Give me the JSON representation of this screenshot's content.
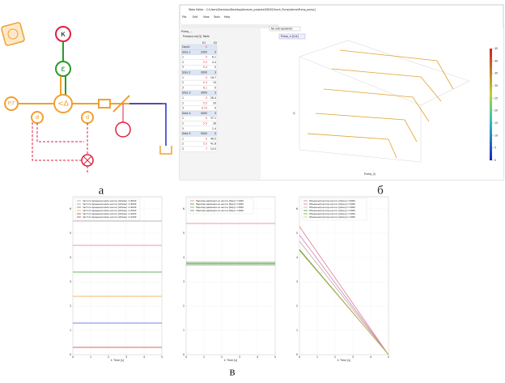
{
  "labels": {
    "a": "а",
    "b": "б",
    "c": "в"
  },
  "diagram": {
    "k": "к",
    "e": "ε",
    "v": "<Δ",
    "p": "P|T",
    "d1": "d",
    "d2": "d"
  },
  "editor": {
    "title": "Table Editor - C:\\Users\\Stanislav\\Desktop\\Amesim_projects\\SSDV\\Check_Pump\\demo\\Pump_pump]",
    "menu": [
      "File",
      "Edit",
      "View",
      "Tools",
      "Help"
    ],
    "tab": "Pump_...",
    "table_name": "Pumps(r.m)(Q) Table",
    "columns": [
      "X1",
      "X2"
    ],
    "rows": [
      [
        "Count",
        "5",
        ""
      ],
      [
        "Slice 1",
        "2000",
        "3"
      ],
      [
        "1",
        "0",
        "8.1"
      ],
      [
        "2",
        "3.3",
        "4.4"
      ],
      [
        "3",
        "5.4",
        "0"
      ],
      [
        "Slice 2",
        "3000",
        "3"
      ],
      [
        "1",
        "0",
        "18.7"
      ],
      [
        "2",
        "5.3",
        "10"
      ],
      [
        "3",
        "8.1",
        "0"
      ],
      [
        "Slice 3",
        "3000",
        "3"
      ],
      [
        "1",
        "0",
        "28.4"
      ],
      [
        "2",
        "5.5",
        "20"
      ],
      [
        "3",
        "9.73",
        "0"
      ],
      [
        "Slice 4",
        "4000",
        "3"
      ],
      [
        "1",
        "0",
        "37.1"
      ],
      [
        "2",
        "5.5",
        "28"
      ],
      [
        "3",
        "",
        "2.4"
      ],
      [
        "Slice 5",
        "5000",
        "3"
      ],
      [
        "1",
        "0",
        "46.5"
      ],
      [
        "2",
        "5.5",
        "41.8"
      ],
      [
        "3",
        "7",
        "14.5"
      ]
    ],
    "interp": "No extrapolation",
    "plot_tab": "Pump_rr [full]",
    "x_label": "Pump_(l)",
    "y_label": "Q",
    "colorbar_ticks": [
      0,
      5,
      10,
      15,
      20,
      25,
      30,
      35,
      40,
      45
    ]
  },
  "charts": [
    {
      "x_label": "t: Time [s]",
      "xlim": [
        0,
        5
      ],
      "xticks": [
        0,
        1,
        2,
        3,
        4,
        5
      ],
      "ylim": [
        0,
        6.5
      ],
      "yticks": [
        0,
        1,
        2,
        3,
        4,
        5,
        6
      ],
      "x": [
        0,
        5
      ],
      "series": [
        {
          "name": "Частота вращения вала насоса [об/мин] n=6000",
          "color": "#a0a0a0",
          "values": [
            5.5,
            5.5
          ]
        },
        {
          "name": "Частота вращения вала насоса [об/мин] n=5000",
          "color": "#e07890",
          "values": [
            4.5,
            4.5
          ]
        },
        {
          "name": "Частота вращения вала насоса [об/мин] n=4000",
          "color": "#3a9a3a",
          "values": [
            3.4,
            3.4
          ]
        },
        {
          "name": "Частота вращения вала насоса [об/мин] n=3000",
          "color": "#f0a030",
          "values": [
            2.4,
            2.4
          ]
        },
        {
          "name": "Частота вращения вала насоса [об/мин] n=2000",
          "color": "#4060d0",
          "values": [
            1.3,
            1.3
          ]
        },
        {
          "name": "Частота вращения вала насоса [об/мин] n=1000",
          "color": "#d03030",
          "values": [
            0.3,
            0.3
          ]
        }
      ]
    },
    {
      "x_label": "t: Time [s]",
      "xlim": [
        0,
        5
      ],
      "xticks": [
        0,
        1,
        2,
        3,
        4,
        5
      ],
      "ylim": [
        0,
        6.5
      ],
      "yticks": [
        0,
        1,
        2,
        3,
        4,
        5,
        6
      ],
      "x": [
        0,
        5
      ],
      "series": [
        {
          "name": "Перепад давления на насосе [бар] n=1000",
          "color": "#e07890",
          "values": [
            5.4,
            5.4
          ]
        },
        {
          "name": "Перепад давления на насосе [бар] n=2000",
          "color": "#3a9a3a",
          "values": [
            3.8,
            3.8
          ]
        },
        {
          "name": "Перепад давления на насосе [бар] n=3000",
          "color": "#6aaa3a",
          "values": [
            3.75,
            3.75
          ]
        },
        {
          "name": "Перепад давления на насосе [бар] n=4000",
          "color": "#5a8a2a",
          "values": [
            3.7,
            3.7
          ]
        }
      ]
    },
    {
      "x_label": "t: Time [s]",
      "xlim": [
        0,
        5
      ],
      "xticks": [
        0,
        1,
        2,
        3,
        4,
        5
      ],
      "ylim": [
        0,
        6.5
      ],
      "yticks": [
        0,
        1,
        2,
        3,
        4,
        5,
        6
      ],
      "x": [
        0,
        5
      ],
      "series": [
        {
          "name": "Объемный расход насоса [л/мин] n=6000",
          "color": "#e07890",
          "values": [
            5.27,
            0
          ]
        },
        {
          "name": "Объемный расход насоса [л/мин] n=5000",
          "color": "#c080c0",
          "values": [
            4.93,
            0
          ]
        },
        {
          "name": "Объемный расход насоса [л/мин] n=4000",
          "color": "#d0a0a0",
          "values": [
            4.67,
            0
          ]
        },
        {
          "name": "Объемный расход насоса [л/мин] n=3000",
          "color": "#3a9a3a",
          "values": [
            4.33,
            0
          ]
        },
        {
          "name": "Объемный расход насоса [л/мин] n=2000",
          "color": "#6aaa3a",
          "values": [
            4.3,
            0
          ]
        },
        {
          "name": "Объемный расход насоса [л/мин] n=1000",
          "color": "#e0c070",
          "values": [
            4.28,
            0
          ]
        }
      ]
    }
  ]
}
